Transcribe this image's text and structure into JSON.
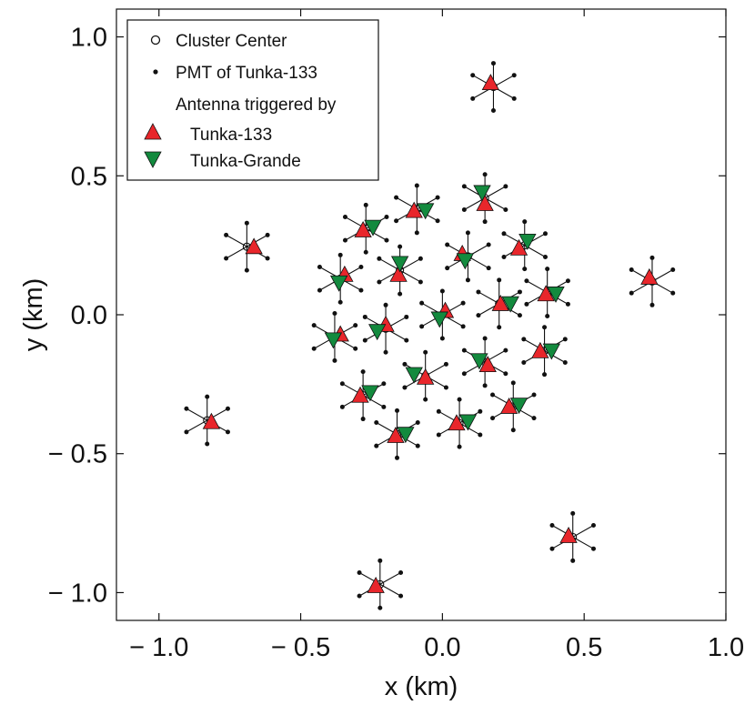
{
  "chart_data": {
    "type": "scatter",
    "title": "",
    "xlabel": "x (km)",
    "ylabel": "y (km)",
    "xlim": [
      -1.15,
      1.0
    ],
    "ylim": [
      -1.1,
      1.1
    ],
    "x_ticks": [
      -1.0,
      -0.5,
      0.0,
      0.5,
      1.0
    ],
    "x_tick_labels": [
      "− 1.0",
      "− 0.5",
      "0.0",
      "0.5",
      "1.0"
    ],
    "y_ticks": [
      -1.0,
      -0.5,
      0.0,
      0.5,
      1.0
    ],
    "y_tick_labels": [
      "− 1.0",
      "− 0.5",
      "0.0",
      "0.5",
      "1.0"
    ],
    "grid": false,
    "legend_position": "top-left",
    "legend": {
      "cluster_center": "Cluster Center",
      "pmt": "PMT of Tunka-133",
      "antenna_header": "Antenna triggered by",
      "tunka133": "Tunka-133",
      "tunka_grande": "Tunka-Grande"
    },
    "colors": {
      "tunka133": "#e8262b",
      "tunka_grande": "#138a3e",
      "pmt": "#111111",
      "marker_edge": "#111111"
    },
    "pmt_offsets_km": [
      [
        0.0,
        0.085
      ],
      [
        0.0,
        -0.085
      ],
      [
        0.073,
        0.042
      ],
      [
        -0.073,
        0.042
      ],
      [
        0.073,
        -0.042
      ],
      [
        -0.073,
        -0.042
      ]
    ],
    "clusters": [
      {
        "x": 0.0,
        "y": 0.0,
        "tunka133": [
          0.01,
          0.015
        ],
        "tunka_grande": [
          -0.01,
          -0.015
        ]
      },
      {
        "x": 0.09,
        "y": 0.21,
        "tunka133": [
          0.07,
          0.22
        ],
        "tunka_grande": [
          0.08,
          0.195
        ]
      },
      {
        "x": 0.2,
        "y": 0.04,
        "tunka133": [
          0.205,
          0.04
        ],
        "tunka_grande": [
          0.24,
          0.04
        ]
      },
      {
        "x": 0.15,
        "y": -0.17,
        "tunka133": [
          0.16,
          -0.18
        ],
        "tunka_grande": [
          0.13,
          -0.165
        ]
      },
      {
        "x": -0.06,
        "y": -0.22,
        "tunka133": [
          -0.06,
          -0.225
        ],
        "tunka_grande": [
          -0.1,
          -0.215
        ]
      },
      {
        "x": -0.2,
        "y": -0.05,
        "tunka133": [
          -0.2,
          -0.035
        ],
        "tunka_grande": [
          -0.23,
          -0.06
        ]
      },
      {
        "x": -0.15,
        "y": 0.16,
        "tunka133": [
          -0.155,
          0.145
        ],
        "tunka_grande": [
          -0.15,
          0.185
        ]
      },
      {
        "x": -0.09,
        "y": 0.38,
        "tunka133": [
          -0.1,
          0.375
        ],
        "tunka_grande": [
          -0.06,
          0.375
        ]
      },
      {
        "x": 0.15,
        "y": 0.42,
        "tunka133": [
          0.15,
          0.4
        ],
        "tunka_grande": [
          0.14,
          0.44
        ]
      },
      {
        "x": 0.29,
        "y": 0.25,
        "tunka133": [
          0.27,
          0.24
        ],
        "tunka_grande": [
          0.3,
          0.265
        ]
      },
      {
        "x": 0.37,
        "y": 0.08,
        "tunka133": [
          0.365,
          0.075
        ],
        "tunka_grande": [
          0.4,
          0.075
        ]
      },
      {
        "x": 0.36,
        "y": -0.13,
        "tunka133": [
          0.345,
          -0.13
        ],
        "tunka_grande": [
          0.385,
          -0.13
        ]
      },
      {
        "x": 0.25,
        "y": -0.33,
        "tunka133": [
          0.235,
          -0.33
        ],
        "tunka_grande": [
          0.27,
          -0.325
        ]
      },
      {
        "x": 0.06,
        "y": -0.39,
        "tunka133": [
          0.05,
          -0.39
        ],
        "tunka_grande": [
          0.09,
          -0.385
        ]
      },
      {
        "x": -0.16,
        "y": -0.43,
        "tunka133": [
          -0.165,
          -0.435
        ],
        "tunka_grande": [
          -0.13,
          -0.43
        ]
      },
      {
        "x": -0.28,
        "y": -0.29,
        "tunka133": [
          -0.29,
          -0.29
        ],
        "tunka_grande": [
          -0.255,
          -0.28
        ]
      },
      {
        "x": -0.38,
        "y": -0.08,
        "tunka133": [
          -0.36,
          -0.07
        ],
        "tunka_grande": [
          -0.385,
          -0.09
        ]
      },
      {
        "x": -0.36,
        "y": 0.13,
        "tunka133": [
          -0.345,
          0.145
        ],
        "tunka_grande": [
          -0.365,
          0.115
        ]
      },
      {
        "x": -0.27,
        "y": 0.31,
        "tunka133": [
          -0.28,
          0.305
        ],
        "tunka_grande": [
          -0.245,
          0.315
        ]
      },
      {
        "x": 0.18,
        "y": 0.82,
        "tunka133": [
          0.17,
          0.835
        ],
        "tunka_grande": null
      },
      {
        "x": 0.74,
        "y": 0.12,
        "tunka133": [
          0.73,
          0.135
        ],
        "tunka_grande": null
      },
      {
        "x": -0.69,
        "y": 0.245,
        "tunka133": [
          -0.665,
          0.245
        ],
        "tunka_grande": null
      },
      {
        "x": -0.83,
        "y": -0.38,
        "tunka133": [
          -0.815,
          -0.385
        ],
        "tunka_grande": null
      },
      {
        "x": 0.46,
        "y": -0.8,
        "tunka133": [
          0.445,
          -0.795
        ],
        "tunka_grande": null
      },
      {
        "x": -0.22,
        "y": -0.97,
        "tunka133": [
          -0.235,
          -0.975
        ],
        "tunka_grande": null
      }
    ]
  }
}
